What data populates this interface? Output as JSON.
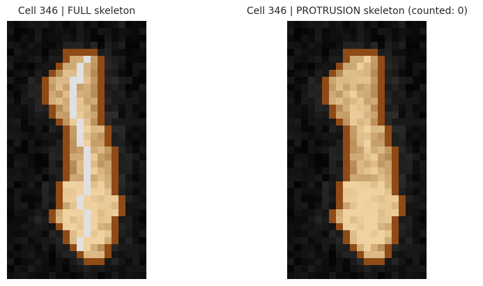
{
  "panels": [
    {
      "title": "Cell 346 | FULL skeleton",
      "skeleton_shown": true
    },
    {
      "title": "Cell 346 | PROTRUSION skeleton (counted: 0)",
      "skeleton_shown": false
    }
  ],
  "colors": {
    "background": "#050505",
    "cell_outline": "#8f4a16",
    "skeleton": "#e0e0e0"
  }
}
